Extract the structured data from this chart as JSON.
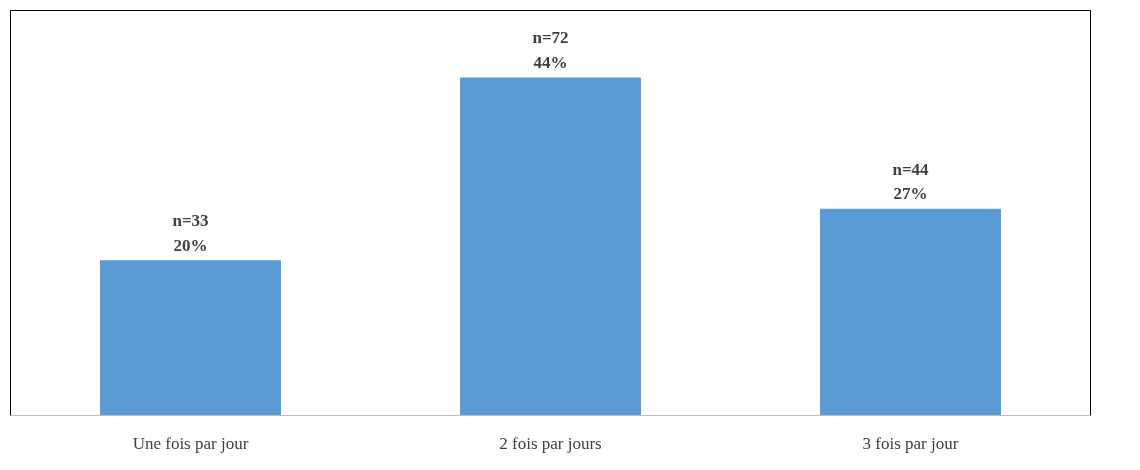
{
  "chart_data": {
    "type": "bar",
    "categories": [
      "Une fois par jour",
      "2 fois par jours",
      "3 fois par jour"
    ],
    "values": [
      33,
      72,
      44
    ],
    "color": "#5b9bd5",
    "value_labels": [
      "n=33\n20%",
      "n=72\n44%",
      "n=44\n27%"
    ],
    "grid": false
  }
}
